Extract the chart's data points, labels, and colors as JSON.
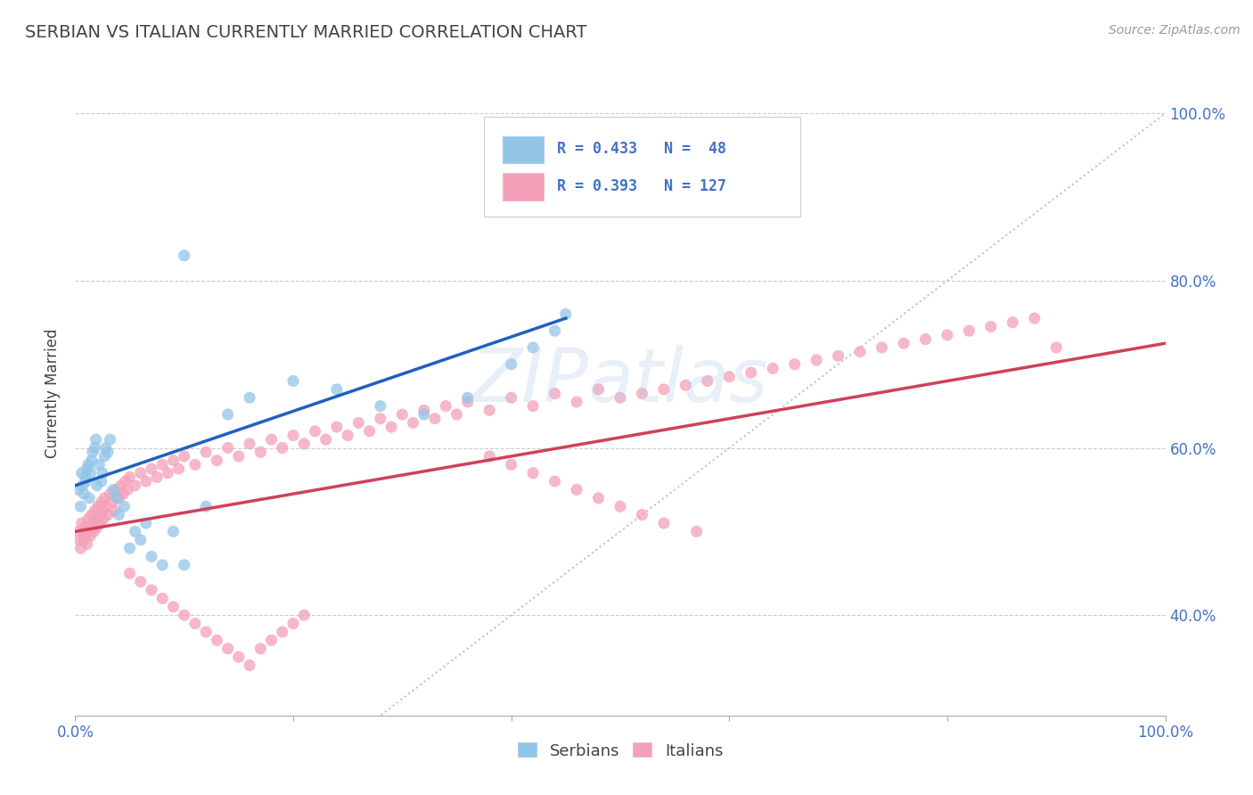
{
  "title": "SERBIAN VS ITALIAN CURRENTLY MARRIED CORRELATION CHART",
  "source_text": "Source: ZipAtlas.com",
  "ylabel": "Currently Married",
  "watermark": "ZIPatlas",
  "serbian_color": "#92C5E8",
  "italian_color": "#F4A0B8",
  "serbian_line_color": "#2060C0",
  "italian_line_color": "#D0405A",
  "diagonal_color": "#AAAAAA",
  "title_color": "#444444",
  "axis_label_color": "#444444",
  "tick_color": "#4472C4",
  "background_color": "#FFFFFF",
  "grid_color": "#CCCCCC",
  "xlim": [
    0.0,
    1.0
  ],
  "ylim": [
    0.28,
    1.05
  ],
  "ytick_positions": [
    0.4,
    0.6,
    0.8,
    1.0
  ],
  "ytick_labels": [
    "40.0%",
    "60.0%",
    "80.0%",
    "100.0%"
  ],
  "srb_line_x": [
    0.0,
    0.45
  ],
  "srb_line_y": [
    0.555,
    0.755
  ],
  "ita_line_x": [
    0.0,
    1.0
  ],
  "ita_line_y": [
    0.5,
    0.725
  ],
  "srb_x": [
    0.003,
    0.005,
    0.006,
    0.007,
    0.008,
    0.009,
    0.01,
    0.011,
    0.012,
    0.013,
    0.014,
    0.015,
    0.016,
    0.018,
    0.019,
    0.02,
    0.022,
    0.024,
    0.025,
    0.027,
    0.028,
    0.03,
    0.032,
    0.035,
    0.038,
    0.04,
    0.045,
    0.05,
    0.055,
    0.06,
    0.065,
    0.07,
    0.08,
    0.09,
    0.1,
    0.12,
    0.14,
    0.16,
    0.2,
    0.24,
    0.28,
    0.32,
    0.36,
    0.4,
    0.42,
    0.44,
    0.45,
    0.1
  ],
  "srb_y": [
    0.55,
    0.53,
    0.57,
    0.555,
    0.545,
    0.565,
    0.56,
    0.575,
    0.58,
    0.54,
    0.57,
    0.585,
    0.595,
    0.6,
    0.61,
    0.555,
    0.58,
    0.56,
    0.57,
    0.59,
    0.6,
    0.595,
    0.61,
    0.55,
    0.54,
    0.52,
    0.53,
    0.48,
    0.5,
    0.49,
    0.51,
    0.47,
    0.46,
    0.5,
    0.46,
    0.53,
    0.64,
    0.66,
    0.68,
    0.67,
    0.65,
    0.64,
    0.66,
    0.7,
    0.72,
    0.74,
    0.76,
    0.83
  ],
  "ita_x": [
    0.003,
    0.004,
    0.005,
    0.006,
    0.007,
    0.008,
    0.009,
    0.01,
    0.011,
    0.012,
    0.013,
    0.014,
    0.015,
    0.016,
    0.017,
    0.018,
    0.019,
    0.02,
    0.021,
    0.022,
    0.023,
    0.024,
    0.025,
    0.026,
    0.027,
    0.028,
    0.03,
    0.032,
    0.034,
    0.036,
    0.038,
    0.04,
    0.042,
    0.044,
    0.046,
    0.048,
    0.05,
    0.055,
    0.06,
    0.065,
    0.07,
    0.075,
    0.08,
    0.085,
    0.09,
    0.095,
    0.1,
    0.11,
    0.12,
    0.13,
    0.14,
    0.15,
    0.16,
    0.17,
    0.18,
    0.19,
    0.2,
    0.21,
    0.22,
    0.23,
    0.24,
    0.25,
    0.26,
    0.27,
    0.28,
    0.29,
    0.3,
    0.31,
    0.32,
    0.33,
    0.34,
    0.35,
    0.36,
    0.38,
    0.4,
    0.42,
    0.44,
    0.46,
    0.48,
    0.5,
    0.52,
    0.54,
    0.56,
    0.58,
    0.6,
    0.62,
    0.64,
    0.66,
    0.68,
    0.7,
    0.72,
    0.74,
    0.76,
    0.78,
    0.8,
    0.82,
    0.84,
    0.86,
    0.88,
    0.9,
    0.05,
    0.06,
    0.07,
    0.08,
    0.09,
    0.1,
    0.11,
    0.12,
    0.13,
    0.14,
    0.15,
    0.16,
    0.17,
    0.18,
    0.19,
    0.2,
    0.21,
    0.38,
    0.4,
    0.42,
    0.44,
    0.46,
    0.48,
    0.5,
    0.52,
    0.54,
    0.57
  ],
  "ita_y": [
    0.5,
    0.49,
    0.48,
    0.51,
    0.5,
    0.49,
    0.505,
    0.495,
    0.485,
    0.515,
    0.505,
    0.495,
    0.52,
    0.51,
    0.5,
    0.525,
    0.515,
    0.505,
    0.53,
    0.52,
    0.51,
    0.535,
    0.525,
    0.515,
    0.54,
    0.53,
    0.52,
    0.545,
    0.535,
    0.525,
    0.55,
    0.54,
    0.555,
    0.545,
    0.56,
    0.55,
    0.565,
    0.555,
    0.57,
    0.56,
    0.575,
    0.565,
    0.58,
    0.57,
    0.585,
    0.575,
    0.59,
    0.58,
    0.595,
    0.585,
    0.6,
    0.59,
    0.605,
    0.595,
    0.61,
    0.6,
    0.615,
    0.605,
    0.62,
    0.61,
    0.625,
    0.615,
    0.63,
    0.62,
    0.635,
    0.625,
    0.64,
    0.63,
    0.645,
    0.635,
    0.65,
    0.64,
    0.655,
    0.645,
    0.66,
    0.65,
    0.665,
    0.655,
    0.67,
    0.66,
    0.665,
    0.67,
    0.675,
    0.68,
    0.685,
    0.69,
    0.695,
    0.7,
    0.705,
    0.71,
    0.715,
    0.72,
    0.725,
    0.73,
    0.735,
    0.74,
    0.745,
    0.75,
    0.755,
    0.72,
    0.45,
    0.44,
    0.43,
    0.42,
    0.41,
    0.4,
    0.39,
    0.38,
    0.37,
    0.36,
    0.35,
    0.34,
    0.36,
    0.37,
    0.38,
    0.39,
    0.4,
    0.59,
    0.58,
    0.57,
    0.56,
    0.55,
    0.54,
    0.53,
    0.52,
    0.51,
    0.5
  ]
}
